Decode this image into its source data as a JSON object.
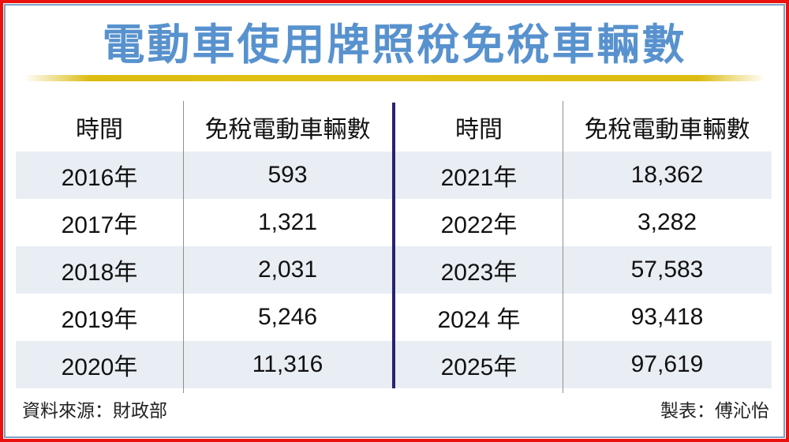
{
  "title": "電動車使用牌照稅免稅車輛數",
  "table": {
    "headers": {
      "time": "時間",
      "count": "免稅電動車輛數"
    },
    "rows": [
      {
        "left_year": "2016年",
        "left_value": "593",
        "right_year": "2021年",
        "right_value": "18,362"
      },
      {
        "left_year": "2017年",
        "left_value": "1,321",
        "right_year": "2022年",
        "right_value": "3,282"
      },
      {
        "left_year": "2018年",
        "left_value": "2,031",
        "right_year": "2023年",
        "right_value": "57,583"
      },
      {
        "left_year": "2019年",
        "left_value": "5,246",
        "right_year": "2024 年",
        "right_value": "93,418"
      },
      {
        "left_year": "2020年",
        "left_value": "11,316",
        "right_year": "2025年",
        "right_value": "97,619"
      }
    ]
  },
  "footer": {
    "source": "資料來源：財政部",
    "credit": "製表：傅沁怡"
  },
  "colors": {
    "title_blue": "#5892ce",
    "gold_rule": "#ddbb10",
    "stripe": "#e9eef4",
    "navy_divider": "#2b2173",
    "gray_divider": "#8f8f8f",
    "outer_border_red": "#ea120e",
    "inner_border_blue": "#7ba3c6",
    "text": "#111111"
  },
  "chart_data": {
    "type": "table",
    "title": "電動車使用牌照稅免稅車輛數",
    "columns": [
      "時間",
      "免稅電動車輛數"
    ],
    "categories": [
      "2016年",
      "2017年",
      "2018年",
      "2019年",
      "2020年",
      "2021年",
      "2022年",
      "2023年",
      "2024 年",
      "2025年"
    ],
    "values": [
      593,
      1321,
      2031,
      5246,
      11316,
      18362,
      3282,
      57583,
      93418,
      97619
    ],
    "source": "資料來源：財政部",
    "credit": "製表：傅沁怡"
  }
}
